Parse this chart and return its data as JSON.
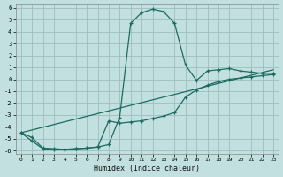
{
  "xlabel": "Humidex (Indice chaleur)",
  "background_color": "#c2e0e0",
  "grid_color": "#9bbebe",
  "line_color": "#1c6b60",
  "xlim": [
    -0.5,
    23.5
  ],
  "ylim": [
    -6.3,
    6.3
  ],
  "xticks": [
    0,
    1,
    2,
    3,
    4,
    5,
    6,
    7,
    8,
    9,
    10,
    11,
    12,
    13,
    14,
    15,
    16,
    17,
    18,
    19,
    20,
    21,
    22,
    23
  ],
  "yticks": [
    -6,
    -5,
    -4,
    -3,
    -2,
    -1,
    0,
    1,
    2,
    3,
    4,
    5,
    6
  ],
  "curve1_x": [
    0,
    1,
    2,
    3,
    4,
    5,
    6,
    7,
    8,
    9,
    10,
    11,
    12,
    13,
    14,
    15,
    16,
    17,
    18,
    19,
    20,
    21,
    22,
    23
  ],
  "curve1_y": [
    -4.5,
    -5.2,
    -5.85,
    -5.9,
    -5.9,
    -5.85,
    -5.8,
    -5.7,
    -5.5,
    -3.2,
    4.7,
    5.6,
    5.9,
    5.7,
    4.7,
    1.2,
    -0.1,
    0.7,
    0.8,
    0.9,
    0.7,
    0.6,
    0.5,
    0.5
  ],
  "curve2_x": [
    0,
    1,
    2,
    3,
    4,
    5,
    6,
    7,
    8,
    9,
    10,
    11,
    12,
    13,
    14,
    15,
    16,
    17,
    18,
    19,
    20,
    21,
    22,
    23
  ],
  "curve2_y": [
    -4.5,
    -4.9,
    -5.8,
    -5.85,
    -5.9,
    -5.85,
    -5.8,
    -5.7,
    -3.5,
    -3.7,
    -3.6,
    -3.5,
    -3.3,
    -3.1,
    -2.8,
    -1.5,
    -0.9,
    -0.5,
    -0.2,
    0.0,
    0.1,
    0.2,
    0.3,
    0.4
  ],
  "line3_x": [
    0,
    23
  ],
  "line3_y": [
    -4.5,
    0.8
  ]
}
